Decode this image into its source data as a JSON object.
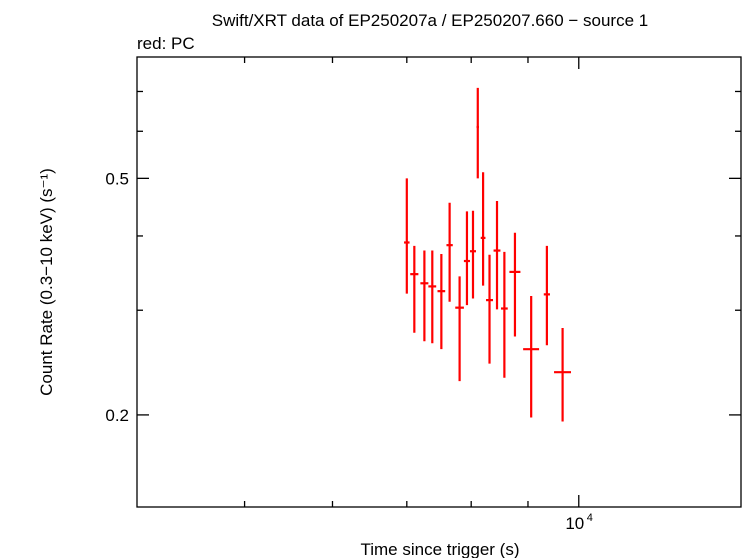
{
  "chart_data": {
    "type": "scatter",
    "title": "Swift/XRT data of EP250207a / EP250207.660 − source 1",
    "subtitle": "red: PC",
    "xlabel": "Time since trigger (s)",
    "ylabel": "Count Rate (0.3−10 keV) (s⁻¹)",
    "x_scale": "log",
    "y_scale": "log",
    "xlim": [
      4000,
      14000
    ],
    "ylim": [
      0.14,
      0.8
    ],
    "x_tick_labels": [
      {
        "value": 10000,
        "base": "10",
        "exp": "4"
      }
    ],
    "y_tick_labels": [
      {
        "value": 0.5,
        "text": "0.5"
      },
      {
        "value": 0.2,
        "text": "0.2"
      }
    ],
    "x_minor_ticks": [
      5000,
      6000,
      7000,
      8000,
      9000
    ],
    "y_minor_ticks": [
      0.3,
      0.4,
      0.6,
      0.7
    ],
    "grid": false,
    "legend": "none",
    "series": [
      {
        "color": "#ff0000",
        "points": [
          {
            "x": 7000,
            "y": 0.39,
            "xerr": [
              40,
              40
            ],
            "ylo": 0.32,
            "yhi": 0.5
          },
          {
            "x": 7110,
            "y": 0.345,
            "xerr": [
              60,
              60
            ],
            "ylo": 0.275,
            "yhi": 0.385
          },
          {
            "x": 7260,
            "y": 0.333,
            "xerr": [
              60,
              60
            ],
            "ylo": 0.266,
            "yhi": 0.378
          },
          {
            "x": 7380,
            "y": 0.329,
            "xerr": [
              60,
              60
            ],
            "ylo": 0.264,
            "yhi": 0.378
          },
          {
            "x": 7520,
            "y": 0.323,
            "xerr": [
              60,
              60
            ],
            "ylo": 0.258,
            "yhi": 0.373
          },
          {
            "x": 7650,
            "y": 0.386,
            "xerr": [
              50,
              50
            ],
            "ylo": 0.31,
            "yhi": 0.455
          },
          {
            "x": 7810,
            "y": 0.303,
            "xerr": [
              70,
              70
            ],
            "ylo": 0.228,
            "yhi": 0.342
          },
          {
            "x": 7930,
            "y": 0.363,
            "xerr": [
              50,
              50
            ],
            "ylo": 0.306,
            "yhi": 0.44
          },
          {
            "x": 8030,
            "y": 0.377,
            "xerr": [
              50,
              50
            ],
            "ylo": 0.314,
            "yhi": 0.441
          },
          {
            "x": 8110,
            "y": 0.61,
            "xerr": [
              20,
              20
            ],
            "ylo": 0.5,
            "yhi": 0.71
          },
          {
            "x": 8200,
            "y": 0.397,
            "xerr": [
              40,
              40
            ],
            "ylo": 0.33,
            "yhi": 0.512
          },
          {
            "x": 8310,
            "y": 0.312,
            "xerr": [
              60,
              60
            ],
            "ylo": 0.244,
            "yhi": 0.372
          },
          {
            "x": 8440,
            "y": 0.378,
            "xerr": [
              60,
              60
            ],
            "ylo": 0.301,
            "yhi": 0.458
          },
          {
            "x": 8570,
            "y": 0.302,
            "xerr": [
              60,
              60
            ],
            "ylo": 0.231,
            "yhi": 0.376
          },
          {
            "x": 8760,
            "y": 0.348,
            "xerr": [
              100,
              100
            ],
            "ylo": 0.271,
            "yhi": 0.405
          },
          {
            "x": 9060,
            "y": 0.258,
            "xerr": [
              150,
              150
            ],
            "ylo": 0.198,
            "yhi": 0.317
          },
          {
            "x": 9360,
            "y": 0.319,
            "xerr": [
              60,
              60
            ],
            "ylo": 0.262,
            "yhi": 0.385
          },
          {
            "x": 9670,
            "y": 0.236,
            "xerr": [
              170,
              170
            ],
            "ylo": 0.195,
            "yhi": 0.28
          }
        ]
      }
    ]
  }
}
